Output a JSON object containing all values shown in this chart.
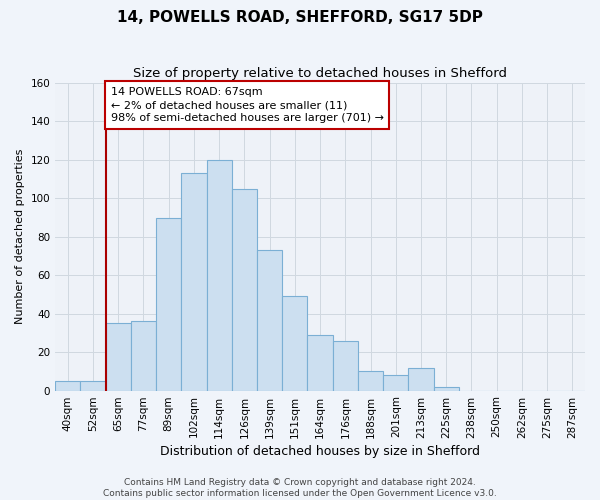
{
  "title": "14, POWELLS ROAD, SHEFFORD, SG17 5DP",
  "subtitle": "Size of property relative to detached houses in Shefford",
  "xlabel": "Distribution of detached houses by size in Shefford",
  "ylabel": "Number of detached properties",
  "bar_color": "#ccdff0",
  "bar_edge_color": "#7bafd4",
  "grid_color": "#d0d8e0",
  "bg_color": "#eef2f8",
  "annotation_box_color": "#ffffff",
  "annotation_box_edge": "#bb0000",
  "ref_line_color": "#aa0000",
  "categories": [
    "40sqm",
    "52sqm",
    "65sqm",
    "77sqm",
    "89sqm",
    "102sqm",
    "114sqm",
    "126sqm",
    "139sqm",
    "151sqm",
    "164sqm",
    "176sqm",
    "188sqm",
    "201sqm",
    "213sqm",
    "225sqm",
    "238sqm",
    "250sqm",
    "262sqm",
    "275sqm",
    "287sqm"
  ],
  "values": [
    5,
    5,
    35,
    36,
    90,
    113,
    120,
    105,
    73,
    49,
    29,
    26,
    10,
    8,
    12,
    2,
    0,
    0,
    0,
    0,
    0
  ],
  "ref_line_index": 2,
  "annotation_line1": "14 POWELLS ROAD: 67sqm",
  "annotation_line2": "← 2% of detached houses are smaller (11)",
  "annotation_line3": "98% of semi-detached houses are larger (701) →",
  "ylim": [
    0,
    160
  ],
  "yticks": [
    0,
    20,
    40,
    60,
    80,
    100,
    120,
    140,
    160
  ],
  "footnote_line1": "Contains HM Land Registry data © Crown copyright and database right 2024.",
  "footnote_line2": "Contains public sector information licensed under the Open Government Licence v3.0.",
  "title_fontsize": 11,
  "subtitle_fontsize": 9.5,
  "xlabel_fontsize": 9,
  "ylabel_fontsize": 8,
  "tick_fontsize": 7.5,
  "annotation_fontsize": 8,
  "footnote_fontsize": 6.5
}
